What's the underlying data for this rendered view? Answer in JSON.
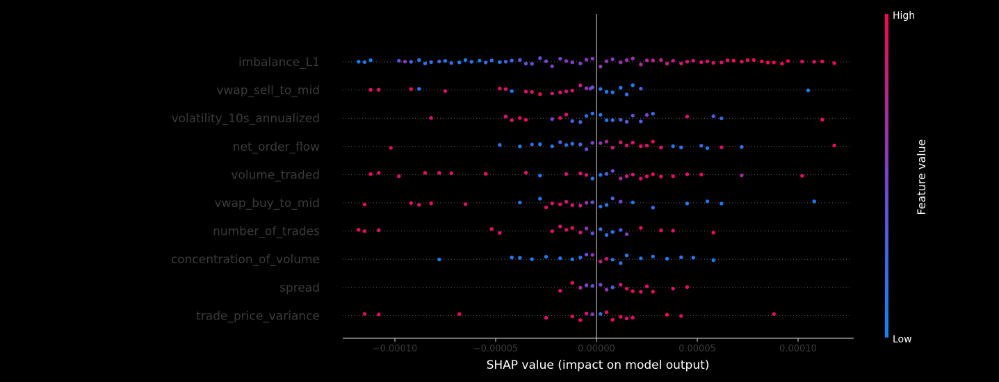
{
  "chart_data": {
    "type": "scatter",
    "subtype": "shap-beeswarm",
    "title": "",
    "xlabel": "SHAP value (impact on model output)",
    "xlim": [
      -0.000125,
      0.000125
    ],
    "xticks": [
      -0.0001,
      -5e-05,
      0.0,
      5e-05,
      0.0001
    ],
    "xtick_labels": [
      "−0.00010",
      "−0.00005",
      "0.00000",
      "0.00005",
      "0.00010"
    ],
    "features": [
      {
        "name": "imbalance_L1",
        "points": [
          [
            -0.000118,
            0.02
          ],
          [
            -0.000115,
            0.15
          ],
          [
            -0.000112,
            0.05
          ],
          [
            -9.8e-05,
            0.35
          ],
          [
            -9.5e-05,
            0.6
          ],
          [
            -9.2e-05,
            0.25
          ],
          [
            -8.8e-05,
            0.12
          ],
          [
            -8.5e-05,
            0.2
          ],
          [
            -8.2e-05,
            0.18
          ],
          [
            -7.8e-05,
            0.3
          ],
          [
            -7.5e-05,
            0.1
          ],
          [
            -7.2e-05,
            0.22
          ],
          [
            -6.8e-05,
            0.15
          ],
          [
            -6.5e-05,
            0.08
          ],
          [
            -6.2e-05,
            0.2
          ],
          [
            -5.8e-05,
            0.12
          ],
          [
            -5.5e-05,
            0.25
          ],
          [
            -5.2e-05,
            0.18
          ],
          [
            -4.8e-05,
            0.1
          ],
          [
            -4.5e-05,
            0.3
          ],
          [
            -4.2e-05,
            0.2
          ],
          [
            -3.8e-05,
            0.38
          ],
          [
            -3.5e-05,
            0.35
          ],
          [
            -3.2e-05,
            0.4
          ],
          [
            -2.8e-05,
            0.42
          ],
          [
            -2.5e-05,
            0.45
          ],
          [
            -2.2e-05,
            0.48
          ],
          [
            -1.8e-05,
            0.5
          ],
          [
            -1.5e-05,
            0.55
          ],
          [
            -1.2e-05,
            0.52
          ],
          [
            -8e-06,
            0.5
          ],
          [
            -5e-06,
            0.58
          ],
          [
            -2e-06,
            0.55
          ],
          [
            2e-06,
            0.6
          ],
          [
            5e-06,
            0.62
          ],
          [
            8e-06,
            0.58
          ],
          [
            1.2e-05,
            0.65
          ],
          [
            1.5e-05,
            0.62
          ],
          [
            1.8e-05,
            0.66
          ],
          [
            2.2e-05,
            0.7
          ],
          [
            2.5e-05,
            0.72
          ],
          [
            2.8e-05,
            0.75
          ],
          [
            3.2e-05,
            0.78
          ],
          [
            3.5e-05,
            0.8
          ],
          [
            3.8e-05,
            0.82
          ],
          [
            4.2e-05,
            0.85
          ],
          [
            4.5e-05,
            0.88
          ],
          [
            4.8e-05,
            0.85
          ],
          [
            5.2e-05,
            0.9
          ],
          [
            5.5e-05,
            0.88
          ],
          [
            5.8e-05,
            0.9
          ],
          [
            6.2e-05,
            0.92
          ],
          [
            6.5e-05,
            0.9
          ],
          [
            6.8e-05,
            0.95
          ],
          [
            7.2e-05,
            0.92
          ],
          [
            7.5e-05,
            0.95
          ],
          [
            7.8e-05,
            0.97
          ],
          [
            8.2e-05,
            0.96
          ],
          [
            8.5e-05,
            0.98
          ],
          [
            8.8e-05,
            0.97
          ],
          [
            9.2e-05,
            0.99
          ],
          [
            9.5e-05,
            0.98
          ],
          [
            0.000102,
            0.95
          ],
          [
            0.000108,
            0.92
          ],
          [
            0.000112,
            0.98
          ],
          [
            0.000118,
            0.97
          ]
        ]
      },
      {
        "name": "vwap_sell_to_mid",
        "points": [
          [
            -0.000112,
            0.95
          ],
          [
            -0.000108,
            0.9
          ],
          [
            -9.2e-05,
            0.92
          ],
          [
            -8.8e-05,
            0.1
          ],
          [
            -7.5e-05,
            0.9
          ],
          [
            -4.8e-05,
            0.95
          ],
          [
            -4.5e-05,
            0.9
          ],
          [
            -4.2e-05,
            0.15
          ],
          [
            -3.5e-05,
            0.92
          ],
          [
            -3.2e-05,
            0.9
          ],
          [
            -2.8e-05,
            0.95
          ],
          [
            -2.2e-05,
            0.88
          ],
          [
            -1.8e-05,
            0.9
          ],
          [
            -1.5e-05,
            0.85
          ],
          [
            -1.2e-05,
            0.92
          ],
          [
            -8e-06,
            0.8
          ],
          [
            -5e-06,
            0.6
          ],
          [
            -3e-06,
            0.5
          ],
          [
            -2e-06,
            0.4
          ],
          [
            2e-06,
            0.15
          ],
          [
            5e-06,
            0.1
          ],
          [
            8e-06,
            0.12
          ],
          [
            1.2e-05,
            0.1
          ],
          [
            1.5e-05,
            0.15
          ],
          [
            1.8e-05,
            0.05
          ],
          [
            2.2e-05,
            0.3
          ],
          [
            0.000105,
            0.1
          ]
        ]
      },
      {
        "name": "volatility_10s_annualized",
        "points": [
          [
            -8.2e-05,
            0.9
          ],
          [
            -4.5e-05,
            0.85
          ],
          [
            -4.2e-05,
            0.9
          ],
          [
            -3.8e-05,
            0.95
          ],
          [
            -3.5e-05,
            0.9
          ],
          [
            -2.2e-05,
            0.5
          ],
          [
            -1.8e-05,
            0.92
          ],
          [
            -1.5e-05,
            0.88
          ],
          [
            -1.2e-05,
            0.3
          ],
          [
            -8e-06,
            0.25
          ],
          [
            -5e-06,
            0.2
          ],
          [
            -2e-06,
            0.15
          ],
          [
            2e-06,
            0.12
          ],
          [
            5e-06,
            0.1
          ],
          [
            8e-06,
            0.18
          ],
          [
            1.2e-05,
            0.3
          ],
          [
            1.5e-05,
            0.35
          ],
          [
            1.8e-05,
            0.4
          ],
          [
            2.2e-05,
            0.3
          ],
          [
            2.5e-05,
            0.5
          ],
          [
            2.8e-05,
            0.2
          ],
          [
            4.5e-05,
            0.9
          ],
          [
            5.8e-05,
            0.3
          ],
          [
            6.2e-05,
            0.2
          ],
          [
            0.000112,
            0.95
          ]
        ]
      },
      {
        "name": "net_order_flow",
        "points": [
          [
            -0.000102,
            0.95
          ],
          [
            -4.8e-05,
            0.2
          ],
          [
            -3.8e-05,
            0.1
          ],
          [
            -3.2e-05,
            0.3
          ],
          [
            -2.8e-05,
            0.1
          ],
          [
            -2.2e-05,
            0.15
          ],
          [
            -1.8e-05,
            0.3
          ],
          [
            -1.5e-05,
            0.2
          ],
          [
            -1.2e-05,
            0.12
          ],
          [
            -8e-06,
            0.25
          ],
          [
            -5e-06,
            0.4
          ],
          [
            -2e-06,
            0.5
          ],
          [
            2e-06,
            0.6
          ],
          [
            5e-06,
            0.7
          ],
          [
            8e-06,
            0.8
          ],
          [
            1.2e-05,
            0.85
          ],
          [
            1.5e-05,
            0.9
          ],
          [
            1.8e-05,
            0.88
          ],
          [
            2.2e-05,
            0.92
          ],
          [
            2.5e-05,
            0.9
          ],
          [
            2.8e-05,
            0.95
          ],
          [
            3.2e-05,
            0.92
          ],
          [
            3.8e-05,
            0.1
          ],
          [
            4.2e-05,
            0.15
          ],
          [
            5.2e-05,
            0.2
          ],
          [
            5.5e-05,
            0.1
          ],
          [
            6.2e-05,
            0.92
          ],
          [
            7.2e-05,
            0.15
          ],
          [
            0.000118,
            0.95
          ]
        ]
      },
      {
        "name": "volume_traded",
        "points": [
          [
            -0.000112,
            0.95
          ],
          [
            -0.000108,
            0.92
          ],
          [
            -9.8e-05,
            0.9
          ],
          [
            -8.5e-05,
            0.95
          ],
          [
            -7.8e-05,
            0.9
          ],
          [
            -7.2e-05,
            0.92
          ],
          [
            -5.5e-05,
            0.95
          ],
          [
            -3.5e-05,
            0.9
          ],
          [
            -2.8e-05,
            0.1
          ],
          [
            -1.5e-05,
            0.85
          ],
          [
            -8e-06,
            0.88
          ],
          [
            -5e-06,
            0.9
          ],
          [
            -2e-06,
            0.12
          ],
          [
            2e-06,
            0.1
          ],
          [
            5e-06,
            0.3
          ],
          [
            8e-06,
            0.5
          ],
          [
            1.2e-05,
            0.7
          ],
          [
            1.5e-05,
            0.8
          ],
          [
            1.8e-05,
            0.85
          ],
          [
            2.2e-05,
            0.9
          ],
          [
            2.5e-05,
            0.92
          ],
          [
            2.8e-05,
            0.95
          ],
          [
            3.2e-05,
            0.9
          ],
          [
            3.8e-05,
            0.92
          ],
          [
            4.5e-05,
            0.9
          ],
          [
            5.2e-05,
            0.95
          ],
          [
            7.2e-05,
            0.7
          ],
          [
            0.000102,
            0.92
          ]
        ]
      },
      {
        "name": "vwap_buy_to_mid",
        "points": [
          [
            -0.000115,
            0.95
          ],
          [
            -9.2e-05,
            0.92
          ],
          [
            -8.8e-05,
            0.9
          ],
          [
            -8.2e-05,
            0.95
          ],
          [
            -6.5e-05,
            0.9
          ],
          [
            -3.8e-05,
            0.15
          ],
          [
            -2.8e-05,
            0.1
          ],
          [
            -2.5e-05,
            0.92
          ],
          [
            -2.2e-05,
            0.9
          ],
          [
            -1.8e-05,
            0.95
          ],
          [
            -1.5e-05,
            0.85
          ],
          [
            -1.2e-05,
            0.9
          ],
          [
            -8e-06,
            0.8
          ],
          [
            -5e-06,
            0.6
          ],
          [
            -2e-06,
            0.4
          ],
          [
            2e-06,
            0.15
          ],
          [
            5e-06,
            0.1
          ],
          [
            8e-06,
            0.3
          ],
          [
            1.2e-05,
            0.5
          ],
          [
            1.8e-05,
            0.1
          ],
          [
            2.8e-05,
            0.15
          ],
          [
            4.5e-05,
            0.1
          ],
          [
            5.5e-05,
            0.15
          ],
          [
            6.2e-05,
            0.1
          ],
          [
            0.000108,
            0.1
          ]
        ]
      },
      {
        "name": "number_of_trades",
        "points": [
          [
            -0.000118,
            0.95
          ],
          [
            -0.000115,
            0.92
          ],
          [
            -0.000108,
            0.9
          ],
          [
            -5.2e-05,
            0.95
          ],
          [
            -4.8e-05,
            0.9
          ],
          [
            -2.2e-05,
            0.95
          ],
          [
            -1.8e-05,
            0.92
          ],
          [
            -1.5e-05,
            0.9
          ],
          [
            -1.2e-05,
            0.95
          ],
          [
            -8e-06,
            0.85
          ],
          [
            -5e-06,
            0.6
          ],
          [
            -2e-06,
            0.4
          ],
          [
            2e-06,
            0.2
          ],
          [
            5e-06,
            0.15
          ],
          [
            8e-06,
            0.1
          ],
          [
            1.2e-05,
            0.3
          ],
          [
            1.5e-05,
            0.5
          ],
          [
            2.2e-05,
            0.95
          ],
          [
            3.2e-05,
            0.92
          ],
          [
            3.8e-05,
            0.9
          ],
          [
            5.8e-05,
            0.95
          ]
        ]
      },
      {
        "name": "concentration_of_volume",
        "points": [
          [
            -7.8e-05,
            0.1
          ],
          [
            -4.2e-05,
            0.1
          ],
          [
            -3.8e-05,
            0.15
          ],
          [
            -3.2e-05,
            0.12
          ],
          [
            -2.5e-05,
            0.1
          ],
          [
            -1.8e-05,
            0.15
          ],
          [
            -1.2e-05,
            0.12
          ],
          [
            -8e-06,
            0.2
          ],
          [
            -5e-06,
            0.4
          ],
          [
            -2e-06,
            0.6
          ],
          [
            2e-06,
            0.8
          ],
          [
            5e-06,
            0.9
          ],
          [
            8e-06,
            0.2
          ],
          [
            1.2e-05,
            0.15
          ],
          [
            1.5e-05,
            0.1
          ],
          [
            2.2e-05,
            0.12
          ],
          [
            2.8e-05,
            0.15
          ],
          [
            3.5e-05,
            0.1
          ],
          [
            4.2e-05,
            0.15
          ],
          [
            4.8e-05,
            0.1
          ],
          [
            5.8e-05,
            0.12
          ]
        ]
      },
      {
        "name": "spread",
        "points": [
          [
            -1.8e-05,
            0.9
          ],
          [
            -1.2e-05,
            0.95
          ],
          [
            -8e-06,
            0.7
          ],
          [
            -5e-06,
            0.5
          ],
          [
            -2e-06,
            0.4
          ],
          [
            2e-06,
            0.5
          ],
          [
            5e-06,
            0.6
          ],
          [
            8e-06,
            0.3
          ],
          [
            1.2e-05,
            0.85
          ],
          [
            1.5e-05,
            0.9
          ],
          [
            1.8e-05,
            0.95
          ],
          [
            2.2e-05,
            0.9
          ],
          [
            2.5e-05,
            0.92
          ],
          [
            2.8e-05,
            0.95
          ],
          [
            3.8e-05,
            0.9
          ],
          [
            4.5e-05,
            0.95
          ]
        ]
      },
      {
        "name": "trade_price_variance",
        "points": [
          [
            -0.000115,
            0.95
          ],
          [
            -0.000108,
            0.92
          ],
          [
            -6.8e-05,
            0.95
          ],
          [
            -2.5e-05,
            0.9
          ],
          [
            -1.2e-05,
            0.95
          ],
          [
            -8e-06,
            0.92
          ],
          [
            -5e-06,
            0.9
          ],
          [
            -2e-06,
            0.6
          ],
          [
            2e-06,
            0.2
          ],
          [
            5e-06,
            0.9
          ],
          [
            8e-06,
            0.92
          ],
          [
            1.2e-05,
            0.95
          ],
          [
            1.5e-05,
            0.9
          ],
          [
            1.8e-05,
            0.92
          ],
          [
            3.5e-05,
            0.95
          ],
          [
            4.2e-05,
            0.9
          ],
          [
            8.8e-05,
            0.95
          ]
        ]
      }
    ],
    "colorbar": {
      "label": "Feature value",
      "high_label": "High",
      "low_label": "Low",
      "high_color": "#ff0052",
      "low_color": "#008bfb"
    }
  }
}
